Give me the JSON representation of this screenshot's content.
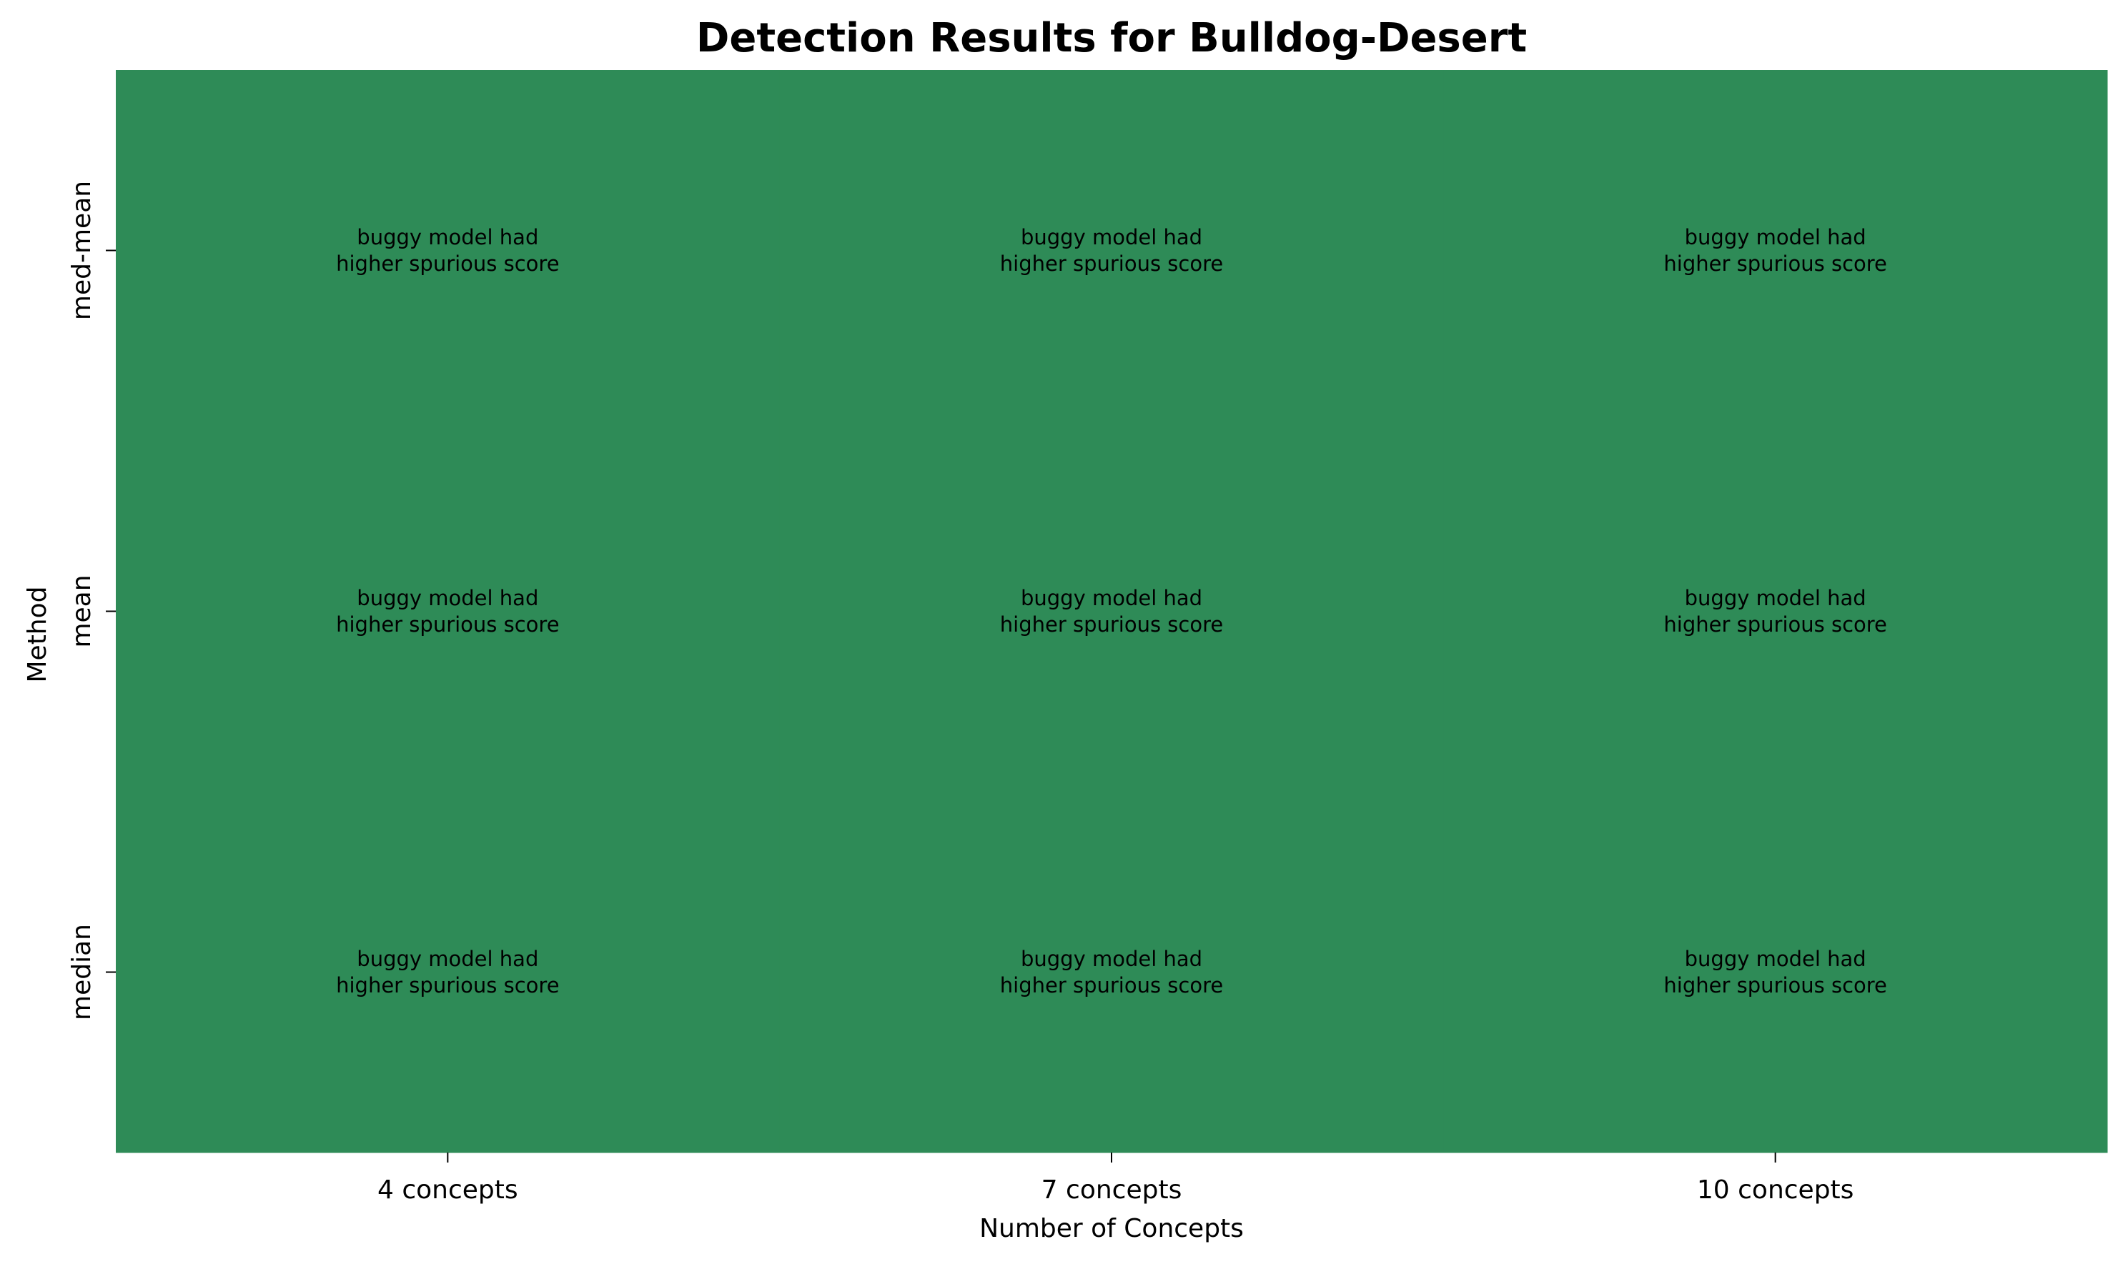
{
  "chart_data": {
    "type": "heatmap",
    "title": "Detection Results for Bulldog-Desert",
    "xlabel": "Number of Concepts",
    "ylabel": "Method",
    "x_categories": [
      "4 concepts",
      "7 concepts",
      "10 concepts"
    ],
    "y_categories": [
      "med-mean",
      "mean",
      "median"
    ],
    "cells": [
      [
        {
          "lines": [
            "buggy model had",
            "higher spurious score"
          ],
          "color": "#2e8b57"
        },
        {
          "lines": [
            "buggy model had",
            "higher spurious score"
          ],
          "color": "#2e8b57"
        },
        {
          "lines": [
            "buggy model had",
            "higher spurious score"
          ],
          "color": "#2e8b57"
        }
      ],
      [
        {
          "lines": [
            "buggy model had",
            "higher spurious score"
          ],
          "color": "#2e8b57"
        },
        {
          "lines": [
            "buggy model had",
            "higher spurious score"
          ],
          "color": "#2e8b57"
        },
        {
          "lines": [
            "buggy model had",
            "higher spurious score"
          ],
          "color": "#2e8b57"
        }
      ],
      [
        {
          "lines": [
            "buggy model had",
            "higher spurious score"
          ],
          "color": "#2e8b57"
        },
        {
          "lines": [
            "buggy model had",
            "higher spurious score"
          ],
          "color": "#2e8b57"
        },
        {
          "lines": [
            "buggy model had",
            "higher spurious score"
          ],
          "color": "#2e8b57"
        }
      ]
    ],
    "grid": false,
    "legend": "none"
  }
}
